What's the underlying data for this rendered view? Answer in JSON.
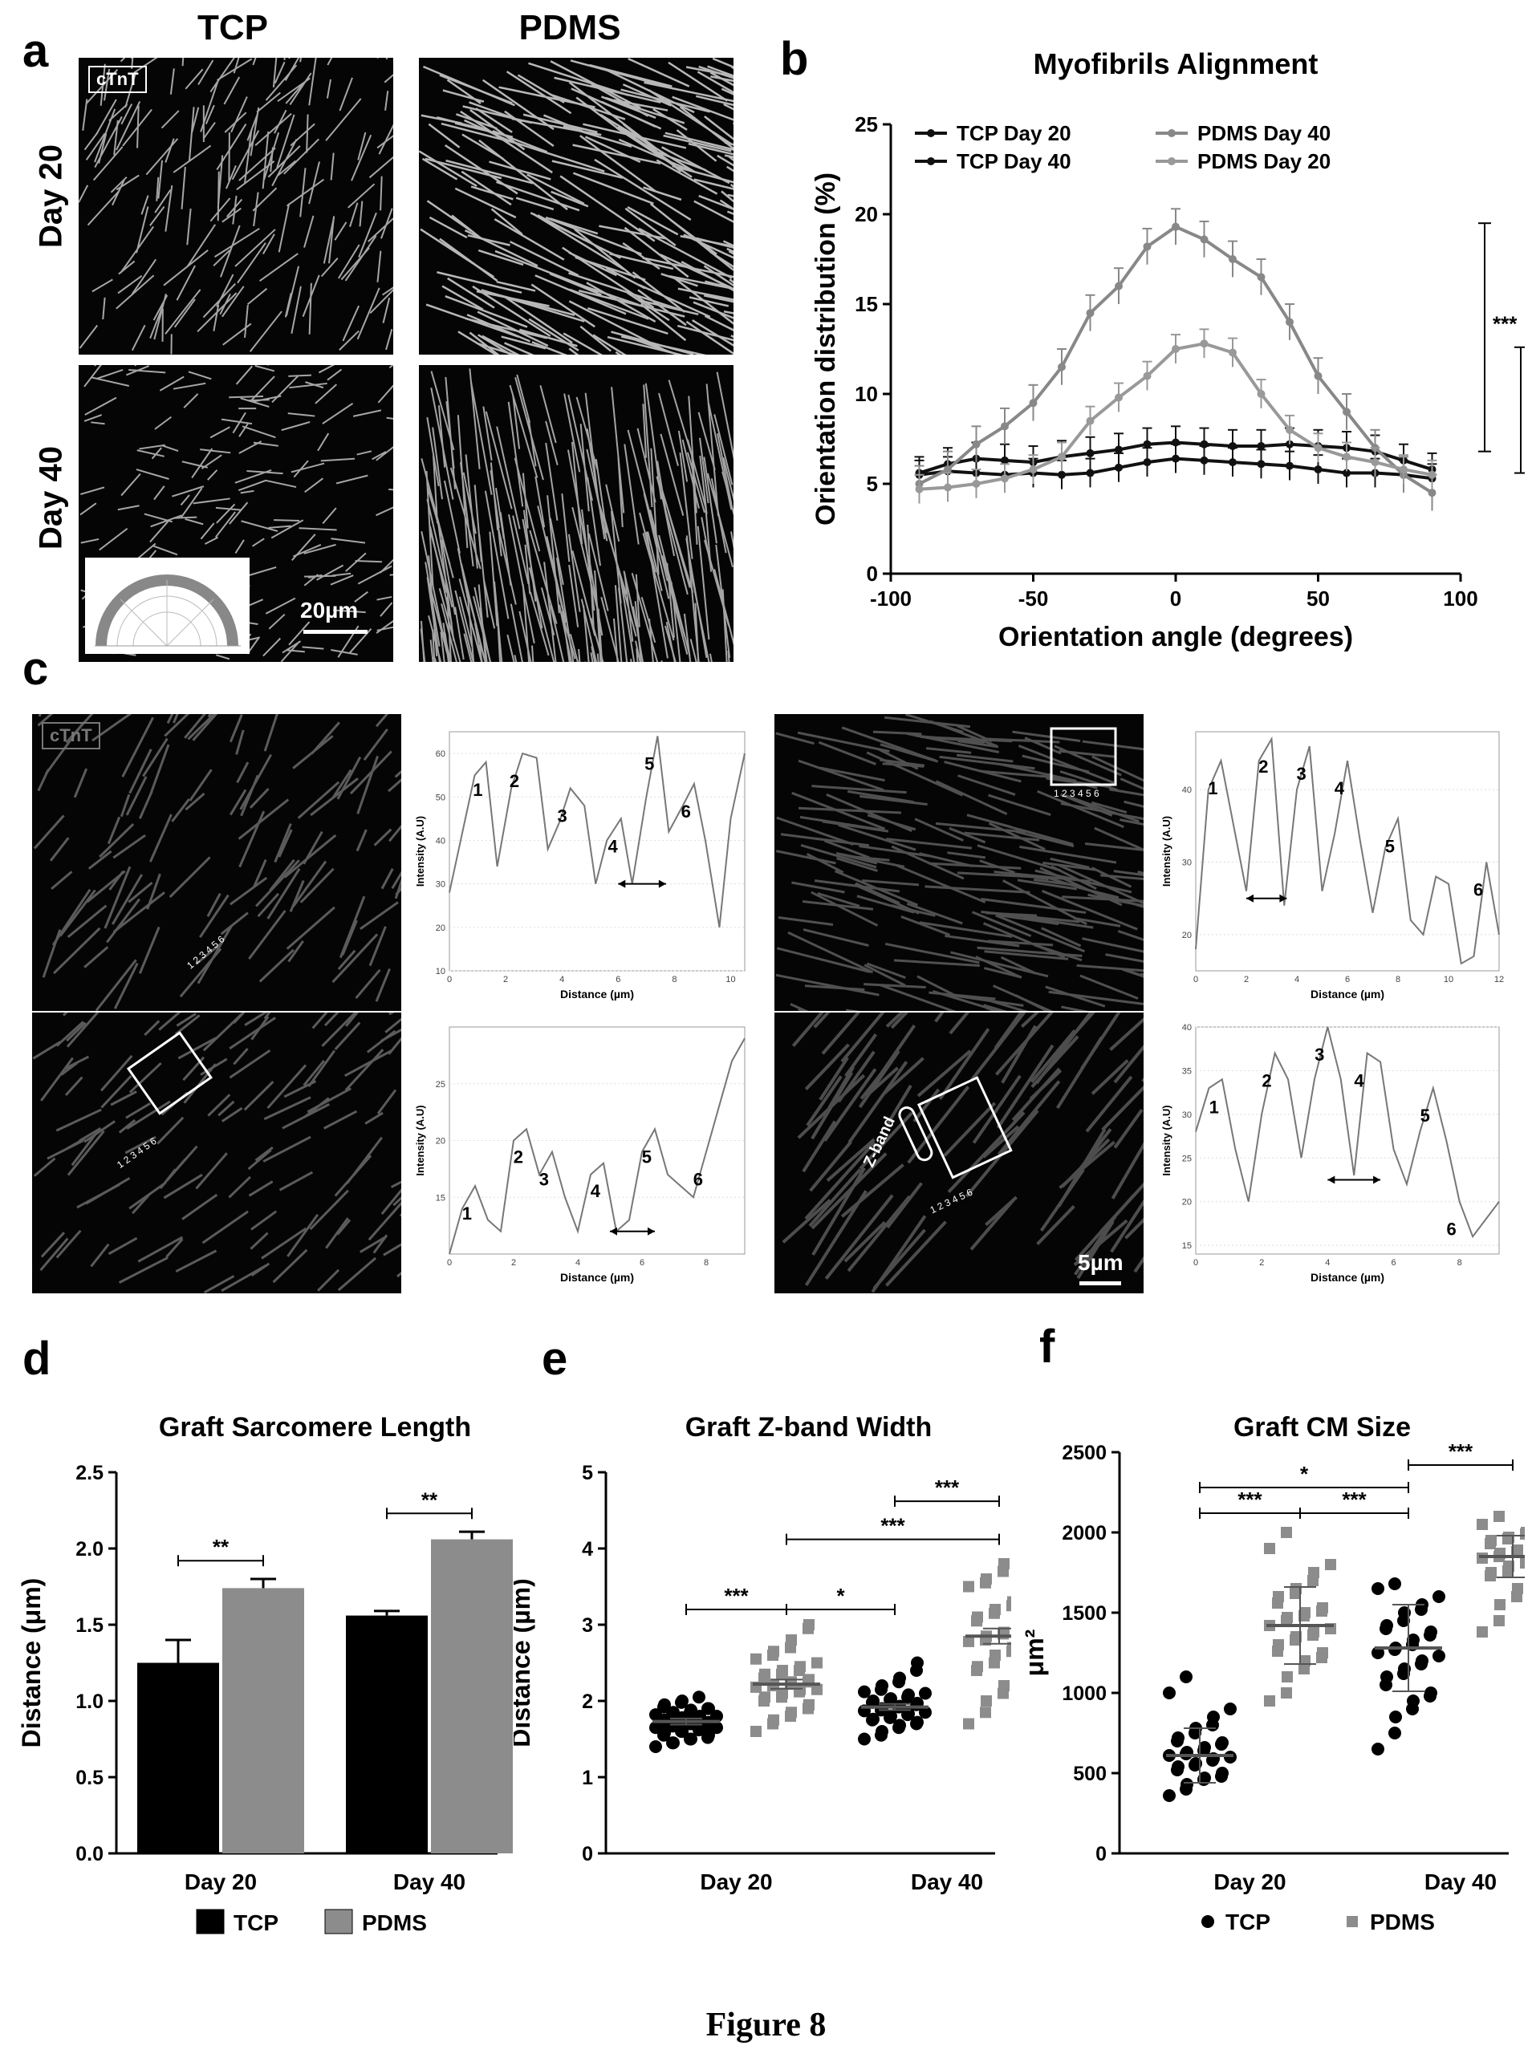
{
  "panel_a": {
    "letter": "a",
    "col_headers": [
      "TCP",
      "PDMS"
    ],
    "row_labels": [
      "Day 20",
      "Day 40"
    ],
    "stain_tag": "cTnT",
    "scale_bar": "20µm"
  },
  "panel_c": {
    "letter": "c",
    "stain_tag": "cTnT",
    "zband_label": "Z-band",
    "scale_bar": "5µm",
    "roi_ticks": "1 2 3 4 5 6",
    "profile_xlabel": "Distance (µm)",
    "profile_ylabel": "Intensity (A.U)"
  },
  "figure_caption": "Figure 8",
  "chart_data": [
    {
      "id": "b",
      "letter": "b",
      "type": "line",
      "title": "Myofibrils Alignment",
      "xlabel": "Orientation angle (degrees)",
      "ylabel": "Orientation distribution (%)",
      "xlim": [
        -100,
        100
      ],
      "ylim": [
        0,
        25
      ],
      "xticks": [
        -100,
        -50,
        0,
        50,
        100
      ],
      "yticks": [
        0,
        5,
        10,
        15,
        20,
        25
      ],
      "x": [
        -90,
        -80,
        -70,
        -60,
        -50,
        -40,
        -30,
        -20,
        -10,
        0,
        10,
        20,
        30,
        40,
        50,
        60,
        70,
        80,
        90
      ],
      "series": [
        {
          "name": "TCP Day 20",
          "color": "#111111",
          "values": [
            5.5,
            5.7,
            5.6,
            5.5,
            5.6,
            5.5,
            5.6,
            5.9,
            6.2,
            6.4,
            6.3,
            6.2,
            6.1,
            6.0,
            5.8,
            5.6,
            5.6,
            5.5,
            5.3
          ],
          "err": 0.8
        },
        {
          "name": "TCP Day 40",
          "color": "#111111",
          "values": [
            5.6,
            6.1,
            6.4,
            6.3,
            6.2,
            6.5,
            6.7,
            6.9,
            7.2,
            7.3,
            7.2,
            7.1,
            7.1,
            7.2,
            7.1,
            7.0,
            6.8,
            6.3,
            5.8
          ],
          "err": 0.9
        },
        {
          "name": "PDMS Day 40",
          "color": "#888888",
          "values": [
            5.0,
            5.8,
            7.2,
            8.2,
            9.5,
            11.5,
            14.5,
            16.0,
            18.2,
            19.3,
            18.6,
            17.5,
            16.5,
            14.0,
            11.0,
            9.0,
            7.0,
            5.5,
            4.5
          ],
          "err": 1.0
        },
        {
          "name": "PDMS Day 20",
          "color": "#999999",
          "values": [
            4.7,
            4.8,
            5.0,
            5.3,
            5.8,
            6.5,
            8.5,
            9.8,
            11.0,
            12.5,
            12.8,
            12.3,
            10.0,
            8.0,
            7.0,
            6.5,
            6.2,
            5.8,
            5.5
          ],
          "err": 0.8
        }
      ],
      "legend_placement": "top",
      "significance": [
        "***",
        "***"
      ]
    },
    {
      "id": "c1",
      "type": "line",
      "xlabel": "Distance (µm)",
      "ylabel": "Intensity (A.U)",
      "xticks": [
        0,
        2,
        4,
        6,
        8,
        10
      ],
      "yticks": [
        10,
        20,
        30,
        40,
        50,
        60
      ],
      "x": [
        0,
        0.4,
        0.9,
        1.3,
        1.7,
        2.2,
        2.6,
        3.1,
        3.5,
        3.9,
        4.3,
        4.8,
        5.2,
        5.6,
        6.1,
        6.5,
        7.0,
        7.4,
        7.8,
        8.3,
        8.7,
        9.1,
        9.6,
        10.0,
        10.5
      ],
      "values": [
        28,
        40,
        55,
        58,
        34,
        52,
        60,
        59,
        38,
        44,
        52,
        48,
        30,
        40,
        45,
        30,
        50,
        64,
        42,
        48,
        53,
        40,
        20,
        45,
        60
      ],
      "peak_labels": [
        "1",
        "2",
        "3",
        "4",
        "5",
        "6"
      ],
      "xlim": [
        0,
        10.5
      ],
      "ylim": [
        10,
        65
      ]
    },
    {
      "id": "c2",
      "type": "line",
      "xlabel": "Distance (µm)",
      "ylabel": "Intensity (A.U)",
      "xticks": [
        0,
        2,
        4,
        6,
        8,
        10,
        12
      ],
      "yticks": [
        20,
        30,
        40
      ],
      "x": [
        0,
        0.5,
        1,
        1.5,
        2,
        2.5,
        3,
        3.5,
        4,
        4.5,
        5,
        5.5,
        6,
        6.5,
        7,
        7.5,
        8,
        8.5,
        9,
        9.5,
        10,
        10.5,
        11,
        11.5,
        12
      ],
      "values": [
        18,
        40,
        44,
        35,
        26,
        44,
        47,
        24,
        40,
        46,
        26,
        34,
        44,
        33,
        23,
        32,
        36,
        22,
        20,
        28,
        27,
        16,
        17,
        30,
        20
      ],
      "peak_labels": [
        "1",
        "2",
        "3",
        "4",
        "5",
        "6"
      ],
      "xlim": [
        0,
        12
      ],
      "ylim": [
        15,
        48
      ]
    },
    {
      "id": "c3",
      "type": "line",
      "xlabel": "Distance (µm)",
      "ylabel": "Intensity (A.U)",
      "xticks": [
        0,
        2,
        4,
        6,
        8
      ],
      "yticks": [
        15,
        20,
        25
      ],
      "x": [
        0,
        0.4,
        0.8,
        1.2,
        1.6,
        2.0,
        2.4,
        2.8,
        3.2,
        3.6,
        4.0,
        4.4,
        4.8,
        5.2,
        5.6,
        6.0,
        6.4,
        6.8,
        7.2,
        7.6,
        8.0,
        8.4,
        8.8,
        9.2
      ],
      "values": [
        10,
        14,
        16,
        13,
        12,
        20,
        21,
        17,
        19,
        15,
        12,
        17,
        18,
        12,
        13,
        19,
        21,
        17,
        16,
        15,
        19,
        23,
        27,
        29
      ],
      "peak_labels": [
        "1",
        "2",
        "3",
        "4",
        "5",
        "6"
      ],
      "xlim": [
        0,
        9.2
      ],
      "ylim": [
        10,
        30
      ]
    },
    {
      "id": "c4",
      "type": "line",
      "xlabel": "Distance (µm)",
      "ylabel": "Intensity (A.U)",
      "xticks": [
        0,
        2,
        4,
        6,
        8
      ],
      "yticks": [
        15,
        20,
        25,
        30,
        35,
        40
      ],
      "x": [
        0,
        0.4,
        0.8,
        1.2,
        1.6,
        2.0,
        2.4,
        2.8,
        3.2,
        3.6,
        4.0,
        4.4,
        4.8,
        5.2,
        5.6,
        6.0,
        6.4,
        6.8,
        7.2,
        7.6,
        8.0,
        8.4,
        8.8,
        9.2
      ],
      "values": [
        28,
        33,
        34,
        26,
        20,
        30,
        37,
        34,
        25,
        34,
        40,
        34,
        23,
        37,
        36,
        26,
        22,
        28,
        33,
        27,
        20,
        16,
        18,
        20
      ],
      "peak_labels": [
        "1",
        "2",
        "3",
        "4",
        "5",
        "6"
      ],
      "xlim": [
        0,
        9.2
      ],
      "ylim": [
        14,
        40
      ]
    },
    {
      "id": "d",
      "letter": "d",
      "type": "bar",
      "title": "Graft Sarcomere Length",
      "ylabel": "Distance (μm)",
      "categories": [
        "Day 20",
        "Day 40"
      ],
      "ylim": [
        0,
        2.5
      ],
      "yticks": [
        "0.0",
        "0.5",
        "1.0",
        "1.5",
        "2.0",
        "2.5"
      ],
      "series": [
        {
          "name": "TCP",
          "color": "#000000",
          "values": [
            1.25,
            1.56
          ],
          "err": [
            0.15,
            0.03
          ]
        },
        {
          "name": "PDMS",
          "color": "#8c8c8c",
          "values": [
            1.74,
            2.06
          ],
          "err": [
            0.06,
            0.05
          ]
        }
      ],
      "significance": [
        "**",
        "**"
      ]
    },
    {
      "id": "e",
      "letter": "e",
      "type": "scatter",
      "title": "Graft Z-band Width",
      "ylabel": "Distance (µm)",
      "categories": [
        "Day 20",
        "Day 40"
      ],
      "ylim": [
        0,
        5
      ],
      "yticks": [
        0,
        1,
        2,
        3,
        4,
        5
      ],
      "groups": [
        {
          "name": "TCP Day 20",
          "color": "#000000",
          "mean": 1.73,
          "sem": 0.04,
          "values": [
            1.4,
            1.45,
            1.5,
            1.52,
            1.55,
            1.58,
            1.6,
            1.62,
            1.65,
            1.68,
            1.7,
            1.72,
            1.74,
            1.76,
            1.78,
            1.8,
            1.82,
            1.85,
            1.88,
            1.9,
            1.92,
            1.95,
            1.98,
            2.0,
            2.05,
            1.63,
            1.67,
            1.71,
            1.75,
            1.79,
            1.84,
            1.6,
            1.7,
            1.8,
            1.5,
            1.9,
            1.45,
            1.55,
            1.65,
            1.85
          ]
        },
        {
          "name": "PDMS Day 20",
          "color": "#8c8c8c",
          "mean": 2.22,
          "sem": 0.06,
          "values": [
            1.6,
            1.7,
            1.8,
            1.85,
            1.9,
            1.95,
            2.0,
            2.05,
            2.1,
            2.12,
            2.15,
            2.18,
            2.2,
            2.22,
            2.25,
            2.28,
            2.3,
            2.35,
            2.4,
            2.45,
            2.5,
            2.55,
            2.6,
            2.7,
            2.8,
            2.95,
            3.0,
            2.25,
            2.15,
            2.35,
            1.75,
            2.05,
            2.65,
            2.4,
            2.2
          ]
        },
        {
          "name": "TCP Day 40",
          "color": "#000000",
          "mean": 1.92,
          "sem": 0.04,
          "values": [
            1.5,
            1.55,
            1.6,
            1.65,
            1.7,
            1.72,
            1.75,
            1.78,
            1.8,
            1.82,
            1.85,
            1.88,
            1.9,
            1.92,
            1.95,
            1.98,
            2.0,
            2.02,
            2.05,
            2.08,
            2.1,
            2.15,
            2.2,
            2.25,
            2.3,
            2.4,
            2.5,
            1.87,
            1.93,
            1.97,
            1.68,
            2.12,
            1.83,
            2.03,
            1.76
          ]
        },
        {
          "name": "PDMS Day 40",
          "color": "#8c8c8c",
          "mean": 2.85,
          "sem": 0.1,
          "values": [
            1.7,
            1.85,
            2.0,
            2.1,
            2.2,
            2.3,
            2.4,
            2.5,
            2.6,
            2.7,
            2.75,
            2.8,
            2.85,
            2.9,
            2.95,
            3.0,
            3.05,
            3.1,
            3.2,
            3.3,
            3.4,
            3.5,
            3.6,
            3.7,
            3.8,
            3.9,
            4.0,
            2.65,
            2.88,
            3.15,
            2.45,
            3.55,
            2.25,
            3.25,
            2.78
          ]
        }
      ],
      "significance": [
        "***",
        "*",
        "***",
        "***"
      ]
    },
    {
      "id": "f",
      "letter": "f",
      "type": "scatter",
      "title": "Graft CM Size",
      "ylabel": "μm²",
      "categories": [
        "Day 20",
        "Day 40"
      ],
      "ylim": [
        0,
        2500
      ],
      "yticks": [
        0,
        500,
        1000,
        1500,
        2000,
        2500
      ],
      "legend": [
        "TCP",
        "PDMS"
      ],
      "groups": [
        {
          "name": "TCP Day 20",
          "color": "#000000",
          "mean": 610,
          "sd": 170,
          "values": [
            360,
            400,
            430,
            460,
            480,
            500,
            520,
            540,
            560,
            580,
            600,
            610,
            620,
            640,
            660,
            680,
            700,
            720,
            750,
            780,
            800,
            850,
            900,
            1000,
            1100,
            550,
            590,
            630,
            470,
            690
          ]
        },
        {
          "name": "PDMS Day 20",
          "color": "#8c8c8c",
          "mean": 1420,
          "sd": 240,
          "values": [
            950,
            1000,
            1100,
            1150,
            1200,
            1250,
            1300,
            1330,
            1360,
            1400,
            1420,
            1450,
            1480,
            1500,
            1530,
            1560,
            1600,
            1650,
            1700,
            1750,
            1800,
            1900,
            2000,
            1380,
            1470,
            1260,
            1620,
            1220,
            1510,
            1350
          ]
        },
        {
          "name": "TCP Day 40",
          "color": "#000000",
          "mean": 1280,
          "sd": 270,
          "values": [
            650,
            750,
            850,
            900,
            950,
            1000,
            1050,
            1100,
            1150,
            1200,
            1250,
            1280,
            1300,
            1330,
            1360,
            1400,
            1450,
            1500,
            1550,
            1600,
            1650,
            1680,
            1230,
            1120,
            1380,
            980,
            1420,
            1270,
            1180,
            1520
          ]
        },
        {
          "name": "PDMS Day 40",
          "color": "#8c8c8c",
          "mean": 1850,
          "sd": 130,
          "values": [
            1380,
            1450,
            1550,
            1600,
            1650,
            1700,
            1730,
            1760,
            1790,
            1810,
            1830,
            1850,
            1870,
            1890,
            1910,
            1930,
            1950,
            1970,
            1990,
            2000,
            2050,
            2100,
            1820,
            1880,
            1750,
            1960,
            1680,
            1840,
            2020,
            1900
          ]
        }
      ],
      "significance": [
        "***",
        "***",
        "*",
        "***"
      ]
    }
  ]
}
